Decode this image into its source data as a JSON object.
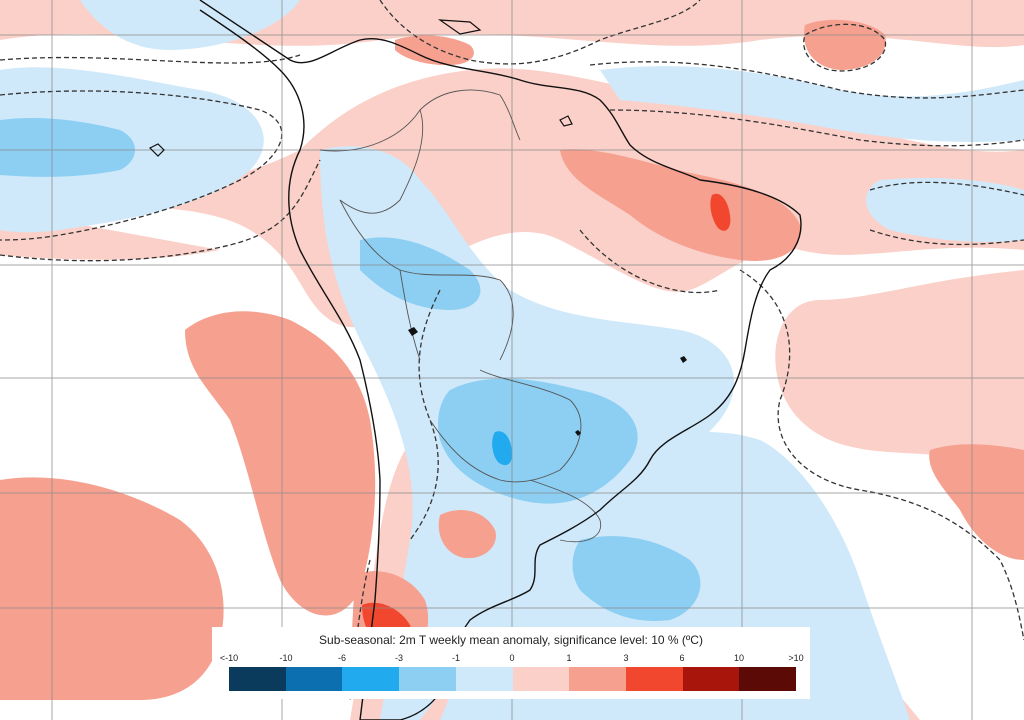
{
  "legend": {
    "title": "Sub-seasonal: 2m T weekly mean anomaly, significance level: 10 % (ºC)",
    "tick_labels": [
      "<-10",
      "-10",
      "-6",
      "-3",
      "-1",
      "0",
      "1",
      "3",
      "6",
      "10",
      ">10"
    ],
    "colors": [
      "#0a3a5c",
      "#0b6fb0",
      "#22aaee",
      "#8ccff3",
      "#cfe9fa",
      "#fbd0c8",
      "#f6a090",
      "#f2472f",
      "#a8150a",
      "#5b0a06"
    ]
  },
  "map_colors": {
    "warm_light": "#fbd0c8",
    "warm_medium": "#f6a090",
    "warm_strong": "#f2472f",
    "cool_light": "#cfe9fa",
    "cool_medium": "#8ccff3",
    "cool_strong": "#22aaee",
    "neutral": "#ffffff",
    "coastline": "#111111",
    "border": "#555555",
    "grid": "#8a8a8a"
  }
}
